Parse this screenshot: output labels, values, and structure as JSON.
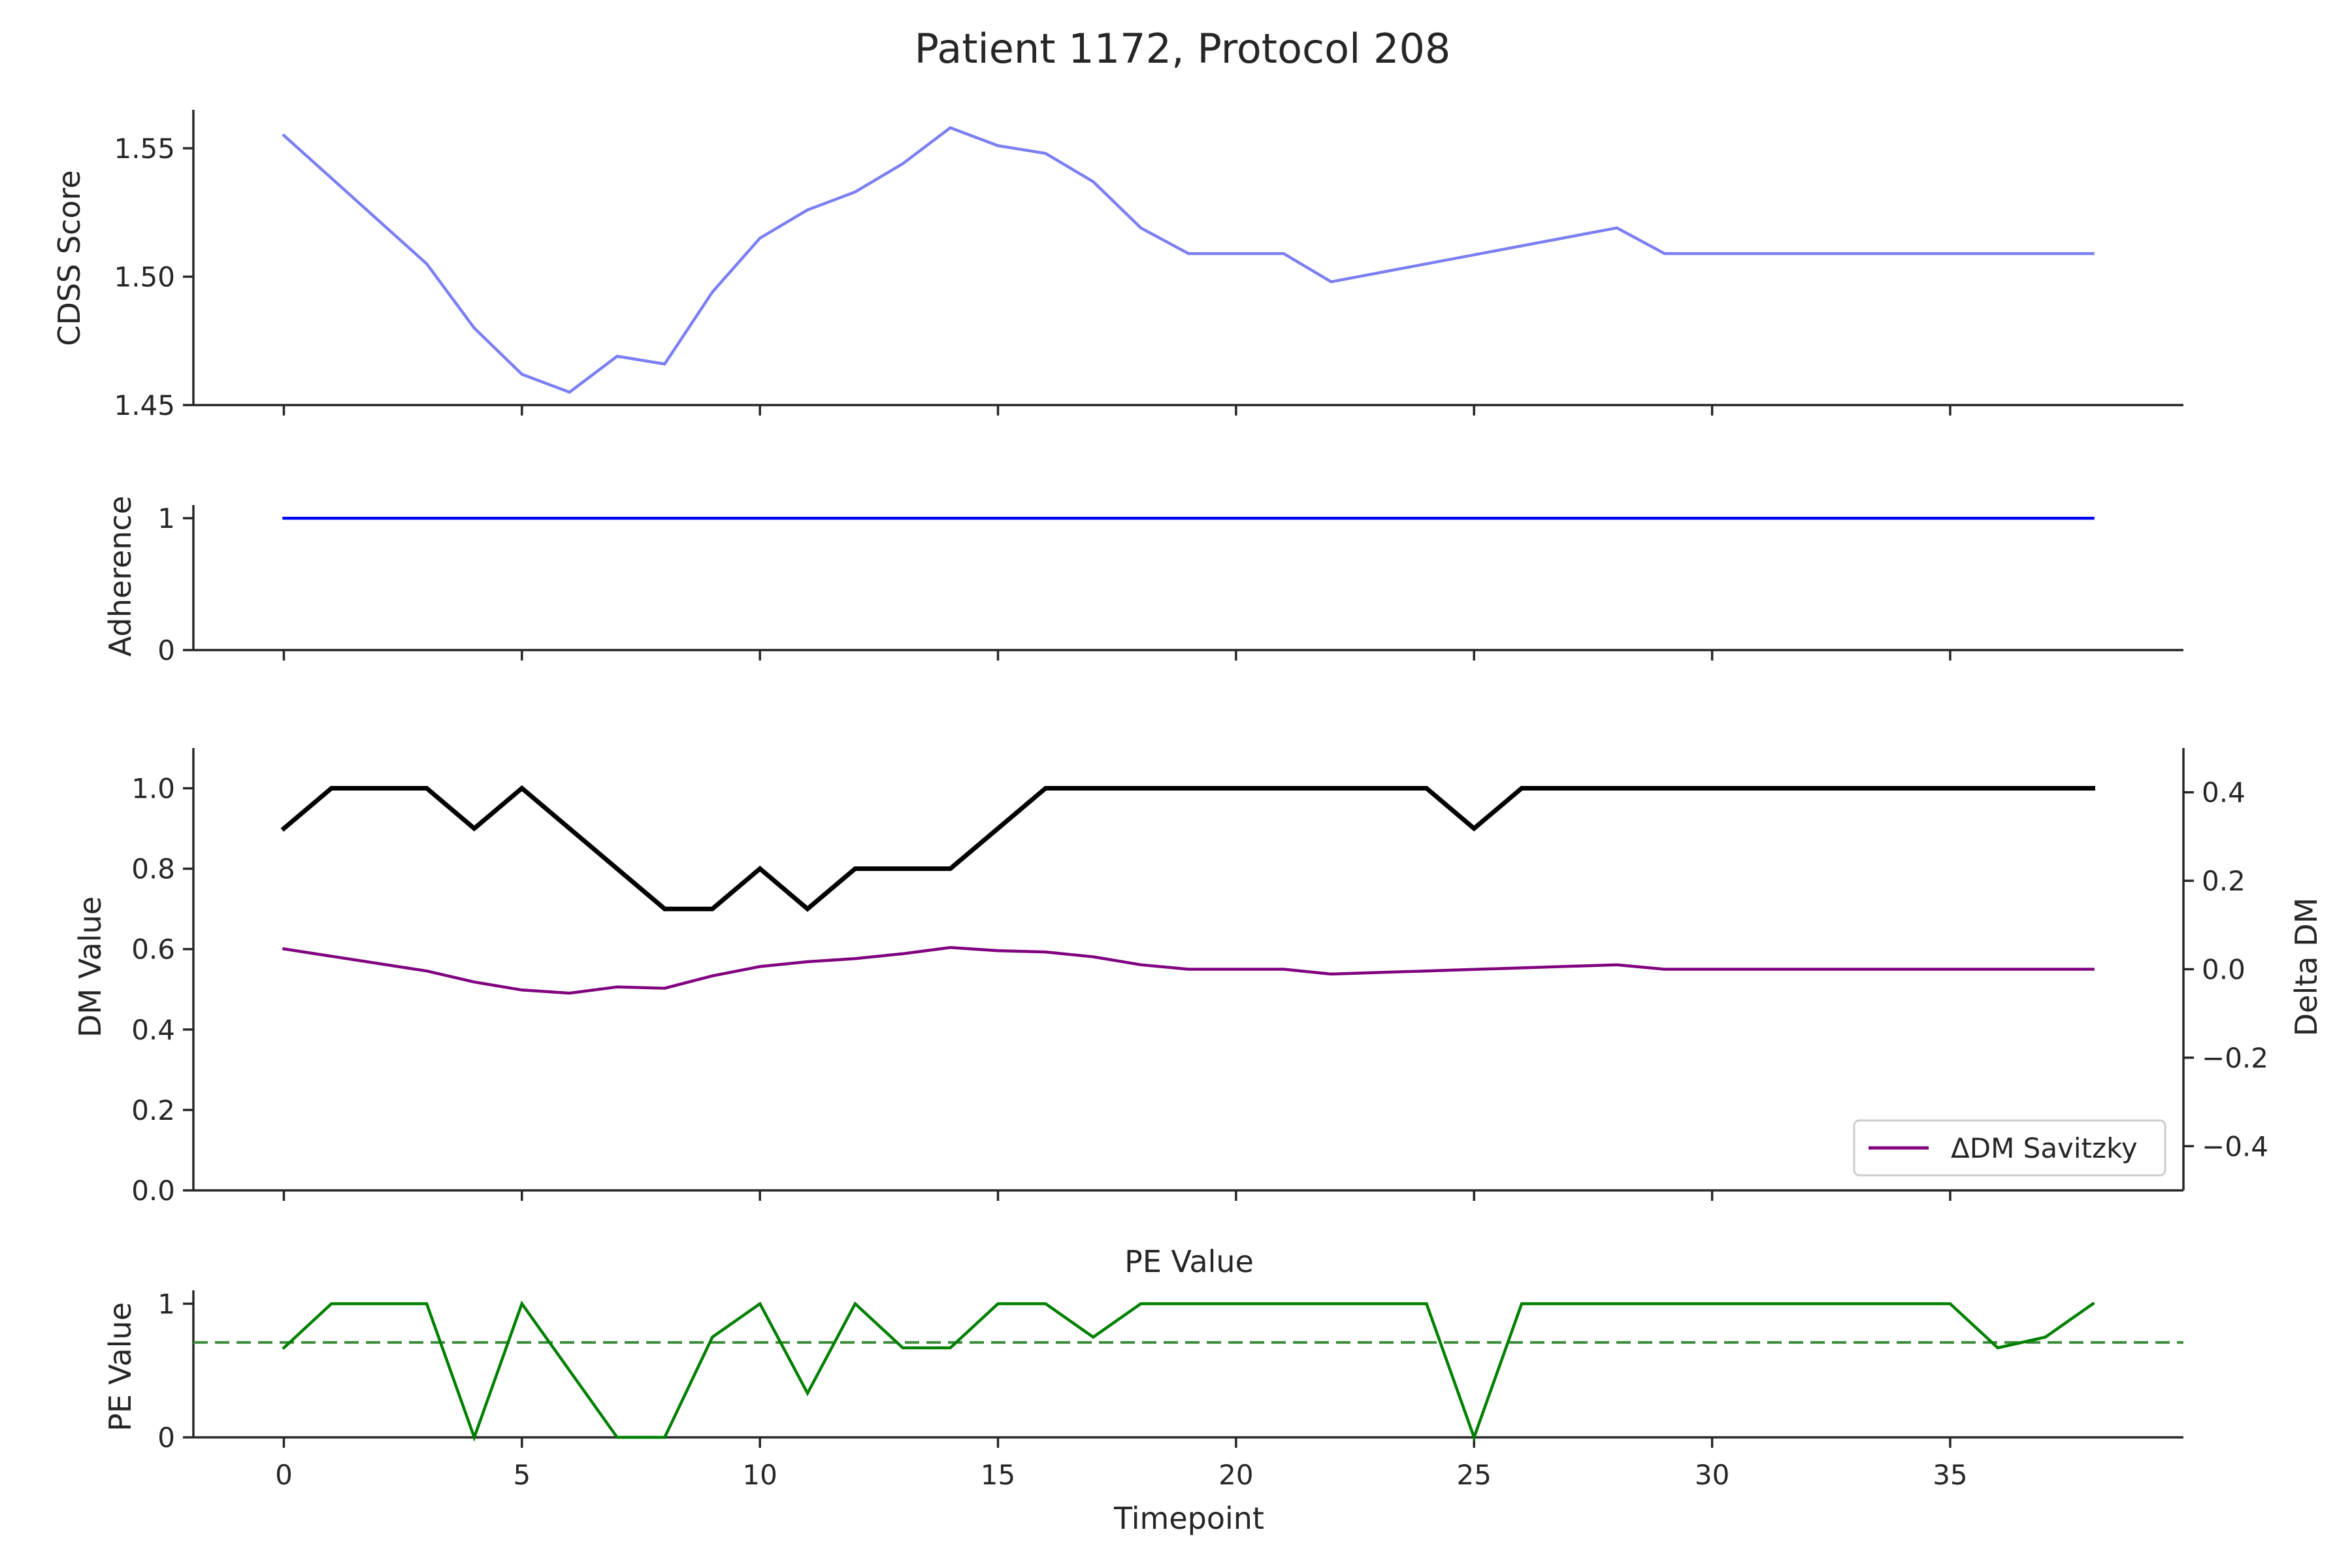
{
  "figure": {
    "title": "Patient 1172, Protocol 208"
  },
  "chart_data": [
    {
      "type": "line",
      "ylabel": "CDSS Score",
      "ylim": [
        1.45,
        1.565
      ],
      "yticks": [
        1.45,
        1.5,
        1.55
      ],
      "yticklabels": [
        "1.45",
        "1.50",
        "1.55"
      ],
      "xlim": [
        -1.9,
        39.9
      ],
      "series": [
        {
          "color": "#7b7ff2",
          "x": [
            0,
            3,
            4,
            5,
            6,
            7,
            8,
            9,
            10,
            11,
            12,
            13,
            14,
            15,
            16,
            17,
            18,
            19,
            21,
            22,
            28,
            29,
            38
          ],
          "y": [
            1.555,
            1.505,
            1.48,
            1.462,
            1.455,
            1.469,
            1.466,
            1.494,
            1.515,
            1.526,
            1.533,
            1.544,
            1.558,
            1.551,
            1.548,
            1.537,
            1.519,
            1.509,
            1.509,
            1.498,
            1.519,
            1.509,
            1.509
          ]
        }
      ]
    },
    {
      "type": "line",
      "ylabel": "Adherence",
      "ylim": [
        0,
        1.1
      ],
      "yticks": [
        0,
        1
      ],
      "yticklabels": [
        "0",
        "1"
      ],
      "xlim": [
        -1.9,
        39.9
      ],
      "series": [
        {
          "color": "#0000ff",
          "x": [
            0,
            38
          ],
          "y": [
            1,
            1
          ]
        }
      ]
    },
    {
      "type": "line",
      "ylabel": "DM Value",
      "y2label": "Delta DM",
      "ylim": [
        0,
        1.1
      ],
      "yticks": [
        0.0,
        0.2,
        0.4,
        0.6,
        0.8,
        1.0
      ],
      "yticklabels": [
        "0.0",
        "0.2",
        "0.4",
        "0.6",
        "0.8",
        "1.0"
      ],
      "y2lim": [
        -0.5,
        0.5
      ],
      "y2ticks": [
        -0.4,
        -0.2,
        0.0,
        0.2,
        0.4
      ],
      "y2ticklabels": [
        "−0.4",
        "−0.2",
        "0.0",
        "0.2",
        "0.4"
      ],
      "xlim": [
        -1.9,
        39.9
      ],
      "legend": {
        "placement": "lower-right",
        "label": "ΔDM Savitzky"
      },
      "series": [
        {
          "axis": "left",
          "color": "#000000",
          "x": [
            0,
            1,
            3,
            4,
            5,
            8,
            9,
            10,
            11,
            12,
            14,
            16,
            24,
            25,
            26,
            38
          ],
          "y": [
            0.9,
            1.0,
            1.0,
            0.9,
            1.0,
            0.7,
            0.7,
            0.8,
            0.7,
            0.8,
            0.8,
            1.0,
            1.0,
            0.9,
            1.0,
            1.0
          ]
        },
        {
          "axis": "right",
          "name": "ΔDM Savitzky",
          "color": "#800080",
          "x": [
            0,
            3,
            4,
            5,
            6,
            7,
            8,
            9,
            10,
            11,
            12,
            13,
            14,
            15,
            16,
            17,
            18,
            19,
            21,
            22,
            28,
            29,
            38
          ],
          "y": [
            0.046,
            -0.004,
            -0.029,
            -0.047,
            -0.054,
            -0.04,
            -0.043,
            -0.015,
            0.006,
            0.017,
            0.024,
            0.035,
            0.049,
            0.042,
            0.039,
            0.028,
            0.01,
            0.0,
            0.0,
            -0.011,
            0.01,
            0.0,
            0.0
          ]
        }
      ]
    },
    {
      "type": "line",
      "title": "PE Value",
      "ylabel": "PE Value",
      "xlabel": "Timepoint",
      "ylim": [
        0,
        1.1
      ],
      "yticks": [
        0,
        1
      ],
      "yticklabels": [
        "0",
        "1"
      ],
      "xlim": [
        -1.9,
        39.9
      ],
      "xticks": [
        0,
        5,
        10,
        15,
        20,
        25,
        30,
        35
      ],
      "xticklabels": [
        "0",
        "5",
        "10",
        "15",
        "20",
        "25",
        "30",
        "35"
      ],
      "threshold": {
        "y": 0.71,
        "color": "#3a8a3a",
        "style": "dashed"
      },
      "series": [
        {
          "color": "#008000",
          "x": [
            0,
            1,
            3,
            4,
            5,
            7,
            8,
            9,
            10,
            11,
            12,
            13,
            14,
            15,
            16,
            17,
            18,
            24,
            25,
            26,
            35,
            36,
            37,
            38
          ],
          "y": [
            0.67,
            1,
            1,
            0,
            1,
            0,
            0,
            0.75,
            1,
            0.33,
            1,
            0.67,
            0.67,
            1,
            1,
            0.75,
            1,
            1,
            0,
            1,
            1,
            0.67,
            0.75,
            1
          ]
        }
      ]
    }
  ]
}
